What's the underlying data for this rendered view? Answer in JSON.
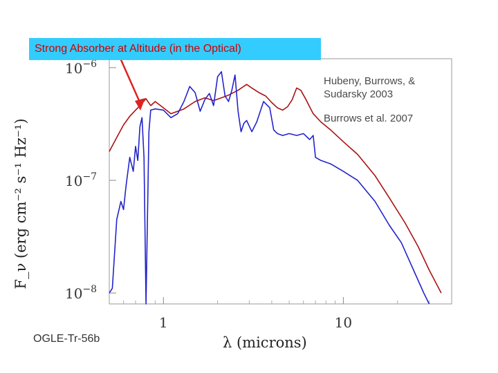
{
  "annotation": {
    "text": "Strong Absorber at Altitude (in the Optical)",
    "bg_color": "#33ccff",
    "text_color": "#cc0000",
    "arrow_color": "#dd2222"
  },
  "legend": {
    "entry_1": "Hubeny, Burrows, & Sudarsky 2003",
    "entry_2": "Burrows et al. 2007"
  },
  "object_label": "OGLE-Tr-56b",
  "chart_data": {
    "type": "line",
    "xlabel": "λ (microns)",
    "ylabel": "F_ν (erg cm⁻² s⁻¹ Hz⁻¹)",
    "x_scale": "log",
    "y_scale": "log",
    "xlim": [
      0.5,
      40
    ],
    "ylim": [
      8e-09,
      1.2e-06
    ],
    "x_ticks": [
      {
        "value": 1,
        "label": "1"
      },
      {
        "value": 10,
        "label": "10"
      }
    ],
    "y_ticks": [
      {
        "value": 1e-06,
        "base": "10",
        "exp": "−6"
      },
      {
        "value": 1e-07,
        "base": "10",
        "exp": "−7"
      },
      {
        "value": 1e-08,
        "base": "10",
        "exp": "−8"
      }
    ],
    "grid": false,
    "series": [
      {
        "name": "Hubeny, Burrows, & Sudarsky 2003",
        "color": "#aa1111",
        "points": [
          [
            0.5,
            1.8e-07
          ],
          [
            0.55,
            2.4e-07
          ],
          [
            0.6,
            3.1e-07
          ],
          [
            0.65,
            3.7e-07
          ],
          [
            0.7,
            4.2e-07
          ],
          [
            0.75,
            4.7e-07
          ],
          [
            0.8,
            5.3e-07
          ],
          [
            0.85,
            4.6e-07
          ],
          [
            0.9,
            5e-07
          ],
          [
            1.0,
            4.4e-07
          ],
          [
            1.1,
            3.9e-07
          ],
          [
            1.2,
            4.1e-07
          ],
          [
            1.3,
            4.3e-07
          ],
          [
            1.5,
            5e-07
          ],
          [
            1.7,
            5.4e-07
          ],
          [
            1.9,
            5.1e-07
          ],
          [
            2.1,
            5.4e-07
          ],
          [
            2.3,
            5.7e-07
          ],
          [
            2.6,
            6.3e-07
          ],
          [
            2.9,
            7.1e-07
          ],
          [
            3.1,
            6.6e-07
          ],
          [
            3.4,
            6e-07
          ],
          [
            3.7,
            5.6e-07
          ],
          [
            4.0,
            4.9e-07
          ],
          [
            4.3,
            4.4e-07
          ],
          [
            4.6,
            4.2e-07
          ],
          [
            4.9,
            4.5e-07
          ],
          [
            5.2,
            5.2e-07
          ],
          [
            5.5,
            6.6e-07
          ],
          [
            5.8,
            6.3e-07
          ],
          [
            6.2,
            5.2e-07
          ],
          [
            6.8,
            3.9e-07
          ],
          [
            7.5,
            3.3e-07
          ],
          [
            8.5,
            2.8e-07
          ],
          [
            10,
            2.2e-07
          ],
          [
            12,
            1.7e-07
          ],
          [
            15,
            1.1e-07
          ],
          [
            18,
            7e-08
          ],
          [
            22,
            4.2e-08
          ],
          [
            26,
            2.6e-08
          ],
          [
            30,
            1.6e-08
          ],
          [
            35,
            1e-08
          ]
        ]
      },
      {
        "name": "Burrows et al. 2007",
        "color": "#2222cc",
        "points": [
          [
            0.5,
            1e-08
          ],
          [
            0.52,
            1.1e-08
          ],
          [
            0.55,
            4.5e-08
          ],
          [
            0.58,
            6.5e-08
          ],
          [
            0.6,
            5.5e-08
          ],
          [
            0.62,
            9e-08
          ],
          [
            0.65,
            1.6e-07
          ],
          [
            0.68,
            1.2e-07
          ],
          [
            0.7,
            2e-07
          ],
          [
            0.72,
            1.5e-07
          ],
          [
            0.74,
            3e-07
          ],
          [
            0.76,
            3.6e-07
          ],
          [
            0.78,
            1.6e-07
          ],
          [
            0.8,
            8e-09
          ],
          [
            0.83,
            2.7e-07
          ],
          [
            0.85,
            4.2e-07
          ],
          [
            0.9,
            4.3e-07
          ],
          [
            1.0,
            4.2e-07
          ],
          [
            1.1,
            3.6e-07
          ],
          [
            1.2,
            3.9e-07
          ],
          [
            1.3,
            5e-07
          ],
          [
            1.4,
            6.8e-07
          ],
          [
            1.5,
            6e-07
          ],
          [
            1.6,
            4.1e-07
          ],
          [
            1.7,
            5.2e-07
          ],
          [
            1.8,
            5.9e-07
          ],
          [
            1.9,
            4.6e-07
          ],
          [
            2.0,
            8.3e-07
          ],
          [
            2.1,
            9.2e-07
          ],
          [
            2.2,
            5.6e-07
          ],
          [
            2.3,
            5e-07
          ],
          [
            2.4,
            6.3e-07
          ],
          [
            2.5,
            8.6e-07
          ],
          [
            2.6,
            4.1e-07
          ],
          [
            2.7,
            2.7e-07
          ],
          [
            2.8,
            3.2e-07
          ],
          [
            2.9,
            3.4e-07
          ],
          [
            3.1,
            2.7e-07
          ],
          [
            3.3,
            3.3e-07
          ],
          [
            3.6,
            5e-07
          ],
          [
            3.9,
            4.4e-07
          ],
          [
            4.1,
            2.8e-07
          ],
          [
            4.3,
            2.6e-07
          ],
          [
            4.6,
            2.5e-07
          ],
          [
            5.0,
            2.6e-07
          ],
          [
            5.5,
            2.5e-07
          ],
          [
            6.0,
            2.6e-07
          ],
          [
            6.5,
            2.3e-07
          ],
          [
            6.8,
            2.5e-07
          ],
          [
            7.0,
            1.6e-07
          ],
          [
            7.5,
            1.5e-07
          ],
          [
            8.5,
            1.4e-07
          ],
          [
            10,
            1.2e-07
          ],
          [
            12,
            1e-07
          ],
          [
            15,
            6.5e-08
          ],
          [
            18,
            4e-08
          ],
          [
            21,
            2.8e-08
          ],
          [
            25,
            1.5e-08
          ],
          [
            28,
            1e-08
          ],
          [
            30,
            8e-09
          ]
        ]
      }
    ]
  }
}
